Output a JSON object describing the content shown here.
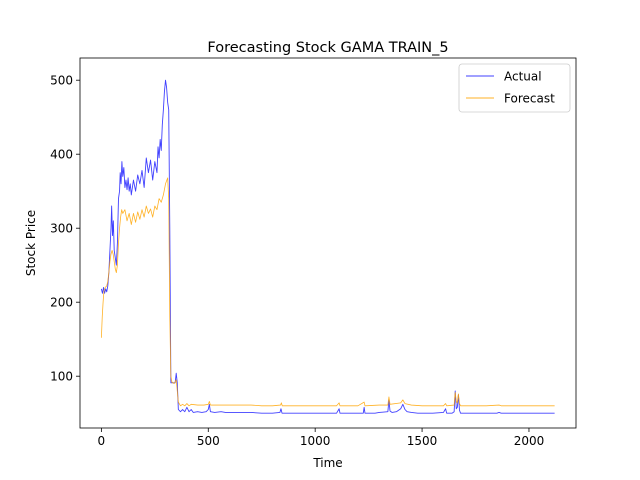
{
  "chart_data": {
    "type": "line",
    "title": "Forecasting Stock GAMA TRAIN_5",
    "xlabel": "Time",
    "ylabel": "Stock Price",
    "xlim": [
      -100,
      2220
    ],
    "ylim": [
      30,
      530
    ],
    "xticks": [
      0,
      500,
      1000,
      1500,
      2000
    ],
    "yticks": [
      100,
      200,
      300,
      400,
      500
    ],
    "grid": false,
    "legend_position": "top-right",
    "series": [
      {
        "name": "Actual",
        "color": "#0000ff",
        "points": [
          [
            0,
            218
          ],
          [
            5,
            212
          ],
          [
            10,
            220
          ],
          [
            15,
            212
          ],
          [
            20,
            218
          ],
          [
            25,
            214
          ],
          [
            30,
            222
          ],
          [
            35,
            240
          ],
          [
            40,
            270
          ],
          [
            45,
            300
          ],
          [
            48,
            330
          ],
          [
            52,
            290
          ],
          [
            56,
            310
          ],
          [
            60,
            270
          ],
          [
            65,
            260
          ],
          [
            70,
            250
          ],
          [
            75,
            280
          ],
          [
            80,
            340
          ],
          [
            85,
            350
          ],
          [
            88,
            375
          ],
          [
            92,
            360
          ],
          [
            96,
            390
          ],
          [
            100,
            370
          ],
          [
            105,
            382
          ],
          [
            110,
            355
          ],
          [
            115,
            365
          ],
          [
            120,
            352
          ],
          [
            125,
            368
          ],
          [
            130,
            350
          ],
          [
            135,
            360
          ],
          [
            140,
            345
          ],
          [
            150,
            365
          ],
          [
            160,
            350
          ],
          [
            170,
            372
          ],
          [
            180,
            360
          ],
          [
            190,
            378
          ],
          [
            200,
            355
          ],
          [
            210,
            395
          ],
          [
            220,
            375
          ],
          [
            230,
            392
          ],
          [
            240,
            365
          ],
          [
            250,
            390
          ],
          [
            260,
            375
          ],
          [
            265,
            410
          ],
          [
            270,
            395
          ],
          [
            275,
            420
          ],
          [
            280,
            405
          ],
          [
            285,
            440
          ],
          [
            290,
            460
          ],
          [
            295,
            485
          ],
          [
            300,
            500
          ],
          [
            305,
            490
          ],
          [
            310,
            470
          ],
          [
            315,
            460
          ],
          [
            320,
            300
          ],
          [
            325,
            91
          ],
          [
            330,
            91
          ],
          [
            335,
            91
          ],
          [
            340,
            91
          ],
          [
            345,
            91
          ],
          [
            350,
            104
          ],
          [
            355,
            91
          ],
          [
            360,
            55
          ],
          [
            370,
            52
          ],
          [
            380,
            55
          ],
          [
            390,
            52
          ],
          [
            400,
            58
          ],
          [
            410,
            52
          ],
          [
            420,
            55
          ],
          [
            430,
            51
          ],
          [
            450,
            52
          ],
          [
            470,
            51
          ],
          [
            490,
            52
          ],
          [
            500,
            55
          ],
          [
            505,
            62
          ],
          [
            510,
            52
          ],
          [
            530,
            51
          ],
          [
            560,
            52
          ],
          [
            580,
            51
          ],
          [
            600,
            51
          ],
          [
            650,
            51
          ],
          [
            700,
            51
          ],
          [
            750,
            50
          ],
          [
            800,
            50
          ],
          [
            835,
            51
          ],
          [
            840,
            56
          ],
          [
            845,
            50
          ],
          [
            900,
            50
          ],
          [
            950,
            50
          ],
          [
            1000,
            50
          ],
          [
            1050,
            50
          ],
          [
            1100,
            50
          ],
          [
            1112,
            56
          ],
          [
            1116,
            50
          ],
          [
            1150,
            50
          ],
          [
            1200,
            50
          ],
          [
            1225,
            50
          ],
          [
            1229,
            58
          ],
          [
            1233,
            50
          ],
          [
            1280,
            50
          ],
          [
            1300,
            51
          ],
          [
            1340,
            52
          ],
          [
            1345,
            68
          ],
          [
            1350,
            53
          ],
          [
            1360,
            51
          ],
          [
            1380,
            52
          ],
          [
            1400,
            56
          ],
          [
            1410,
            62
          ],
          [
            1420,
            55
          ],
          [
            1430,
            52
          ],
          [
            1450,
            51
          ],
          [
            1480,
            50
          ],
          [
            1500,
            50
          ],
          [
            1520,
            50
          ],
          [
            1550,
            50
          ],
          [
            1600,
            51
          ],
          [
            1610,
            56
          ],
          [
            1615,
            50
          ],
          [
            1640,
            50
          ],
          [
            1650,
            52
          ],
          [
            1655,
            80
          ],
          [
            1660,
            56
          ],
          [
            1665,
            58
          ],
          [
            1670,
            75
          ],
          [
            1675,
            54
          ],
          [
            1680,
            50
          ],
          [
            1700,
            50
          ],
          [
            1750,
            50
          ],
          [
            1800,
            50
          ],
          [
            1850,
            50
          ],
          [
            1860,
            51
          ],
          [
            1870,
            50
          ],
          [
            1900,
            50
          ],
          [
            1950,
            50
          ],
          [
            2000,
            50
          ],
          [
            2050,
            50
          ],
          [
            2100,
            50
          ],
          [
            2120,
            50
          ]
        ]
      },
      {
        "name": "Forecast",
        "color": "#ffa500",
        "points": [
          [
            0,
            152
          ],
          [
            4,
            180
          ],
          [
            8,
            200
          ],
          [
            12,
            215
          ],
          [
            18,
            220
          ],
          [
            25,
            222
          ],
          [
            30,
            228
          ],
          [
            35,
            240
          ],
          [
            40,
            255
          ],
          [
            45,
            265
          ],
          [
            50,
            270
          ],
          [
            55,
            265
          ],
          [
            60,
            255
          ],
          [
            65,
            245
          ],
          [
            70,
            240
          ],
          [
            75,
            250
          ],
          [
            80,
            280
          ],
          [
            85,
            300
          ],
          [
            90,
            315
          ],
          [
            95,
            325
          ],
          [
            100,
            320
          ],
          [
            110,
            325
          ],
          [
            120,
            310
          ],
          [
            130,
            320
          ],
          [
            140,
            305
          ],
          [
            150,
            320
          ],
          [
            160,
            308
          ],
          [
            170,
            322
          ],
          [
            180,
            312
          ],
          [
            190,
            325
          ],
          [
            200,
            315
          ],
          [
            210,
            330
          ],
          [
            220,
            320
          ],
          [
            230,
            326
          ],
          [
            240,
            315
          ],
          [
            250,
            330
          ],
          [
            260,
            325
          ],
          [
            270,
            340
          ],
          [
            280,
            335
          ],
          [
            290,
            345
          ],
          [
            300,
            360
          ],
          [
            310,
            368
          ],
          [
            315,
            340
          ],
          [
            320,
            180
          ],
          [
            325,
            100
          ],
          [
            330,
            92
          ],
          [
            340,
            90
          ],
          [
            350,
            95
          ],
          [
            355,
            80
          ],
          [
            360,
            65
          ],
          [
            370,
            60
          ],
          [
            380,
            62
          ],
          [
            390,
            60
          ],
          [
            400,
            63
          ],
          [
            410,
            60
          ],
          [
            420,
            62
          ],
          [
            450,
            61
          ],
          [
            480,
            61
          ],
          [
            500,
            62
          ],
          [
            505,
            66
          ],
          [
            510,
            61
          ],
          [
            550,
            61
          ],
          [
            600,
            61
          ],
          [
            650,
            61
          ],
          [
            700,
            61
          ],
          [
            750,
            60
          ],
          [
            800,
            60
          ],
          [
            838,
            61
          ],
          [
            842,
            64
          ],
          [
            846,
            60
          ],
          [
            900,
            60
          ],
          [
            950,
            60
          ],
          [
            1000,
            60
          ],
          [
            1050,
            60
          ],
          [
            1100,
            60
          ],
          [
            1112,
            64
          ],
          [
            1116,
            60
          ],
          [
            1200,
            60
          ],
          [
            1229,
            65
          ],
          [
            1233,
            60
          ],
          [
            1300,
            61
          ],
          [
            1340,
            61
          ],
          [
            1345,
            72
          ],
          [
            1350,
            62
          ],
          [
            1400,
            64
          ],
          [
            1410,
            68
          ],
          [
            1420,
            63
          ],
          [
            1450,
            61
          ],
          [
            1500,
            60
          ],
          [
            1550,
            60
          ],
          [
            1600,
            60
          ],
          [
            1610,
            63
          ],
          [
            1615,
            60
          ],
          [
            1650,
            61
          ],
          [
            1655,
            78
          ],
          [
            1660,
            66
          ],
          [
            1665,
            64
          ],
          [
            1670,
            76
          ],
          [
            1675,
            63
          ],
          [
            1680,
            60
          ],
          [
            1700,
            60
          ],
          [
            1800,
            60
          ],
          [
            1860,
            61
          ],
          [
            1870,
            60
          ],
          [
            1900,
            60
          ],
          [
            2000,
            60
          ],
          [
            2100,
            60
          ],
          [
            2120,
            60
          ]
        ]
      }
    ]
  }
}
